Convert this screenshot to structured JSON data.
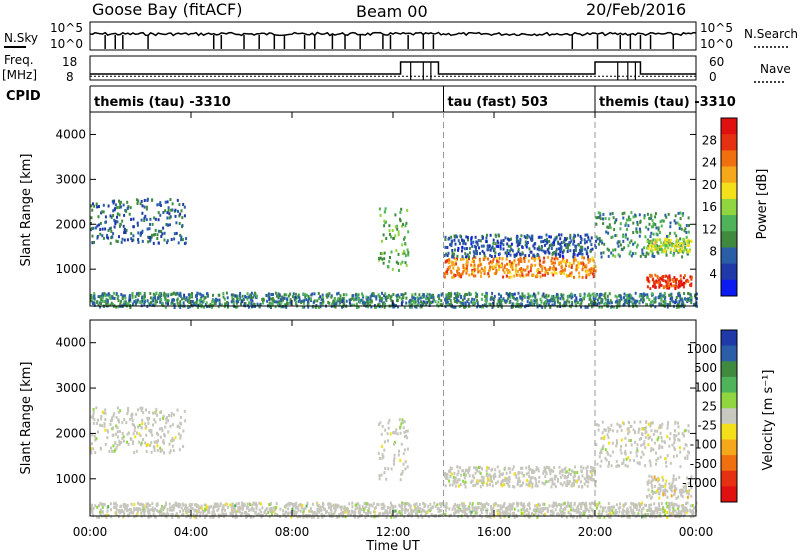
{
  "header": {
    "station": "Goose Bay (fitACF)",
    "beam": "Beam 00",
    "date": "20/Feb/2016"
  },
  "params": {
    "nsky_label": "N.Sky",
    "nsearch_label": "N.Search",
    "nsky_ticks": [
      "10^5",
      "10^0"
    ],
    "freq_label_1": "Freq.",
    "freq_label_2": "[MHz]",
    "freq_ticks": [
      "18",
      "8"
    ],
    "nave_label": "Nave",
    "nave_ticks": [
      "60",
      "0"
    ],
    "cpid_label": "CPID"
  },
  "cpid_segments": [
    {
      "label": "themis (tau) -3310",
      "start_h": 0,
      "end_h": 14
    },
    {
      "label": "tau (fast) 503",
      "start_h": 14,
      "end_h": 20
    },
    {
      "label": "themis (tau) -3310",
      "start_h": 20,
      "end_h": 24
    }
  ],
  "axes": {
    "xlabel": "Time UT",
    "xticks": [
      "00:00",
      "04:00",
      "08:00",
      "12:00",
      "16:00",
      "20:00",
      "00:00"
    ],
    "ylabel": "Slant Range [km]",
    "yticks": [
      "1000",
      "2000",
      "3000",
      "4000"
    ]
  },
  "colors": {
    "power": [
      "#0a1cf2",
      "#1f3aa8",
      "#2a5fa8",
      "#3f8a3f",
      "#4fb35a",
      "#8fd640",
      "#f3e01a",
      "#f5a81a",
      "#f07010",
      "#e63012",
      "#e01010"
    ],
    "velocity": [
      "#1f3aa8",
      "#2a5fa8",
      "#3f8a3f",
      "#4fb35a",
      "#8fd640",
      "#c8c8c0",
      "#f3e01a",
      "#f5a81a",
      "#f07010",
      "#e63012",
      "#e01010"
    ],
    "ground": "#c6c6bd"
  },
  "chart_data": [
    {
      "type": "heatmap",
      "title": "Power",
      "colorbar_label": "Power [dB]",
      "colorbar_ticks": [
        "4",
        "8",
        "12",
        "16",
        "20",
        "24",
        "28"
      ],
      "range": [
        0,
        30
      ],
      "xlim_h": [
        0,
        24
      ],
      "ylim_km": [
        180,
        4500
      ],
      "regions": [
        {
          "t": [
            0,
            3.8
          ],
          "r": [
            1600,
            2600
          ],
          "v": 7
        },
        {
          "t": [
            11.4,
            12.6
          ],
          "r": [
            1000,
            2400
          ],
          "v": 12
        },
        {
          "t": [
            14,
            20
          ],
          "r": [
            850,
            1300
          ],
          "v": 22
        },
        {
          "t": [
            14,
            20
          ],
          "r": [
            1300,
            1800
          ],
          "v": 6
        },
        {
          "t": [
            20,
            23.7
          ],
          "r": [
            1300,
            2300
          ],
          "v": 10
        },
        {
          "t": [
            22,
            23.8
          ],
          "r": [
            600,
            900
          ],
          "v": 26
        },
        {
          "t": [
            22,
            23.8
          ],
          "r": [
            1400,
            1700
          ],
          "v": 16
        },
        {
          "t": [
            0,
            24
          ],
          "r": [
            180,
            500
          ],
          "v": 9
        }
      ]
    },
    {
      "type": "heatmap",
      "title": "Velocity",
      "colorbar_label": "Velocity [m s⁻¹]",
      "colorbar_ticks": [
        "1000",
        "500",
        "100",
        "25",
        "-25",
        "-100",
        "-500",
        "-1000"
      ],
      "range": [
        -1200,
        1200
      ],
      "xlim_h": [
        0,
        24
      ],
      "ylim_km": [
        180,
        4500
      ],
      "regions": [
        {
          "t": [
            0,
            3.8
          ],
          "r": [
            1600,
            2600
          ],
          "v": 0
        },
        {
          "t": [
            11.4,
            12.6
          ],
          "r": [
            1000,
            2400
          ],
          "v": 0
        },
        {
          "t": [
            14,
            20
          ],
          "r": [
            850,
            1300
          ],
          "v": 0
        },
        {
          "t": [
            20,
            23.7
          ],
          "r": [
            1300,
            2300
          ],
          "v": 0
        },
        {
          "t": [
            22,
            23.8
          ],
          "r": [
            600,
            1100
          ],
          "v": -150
        },
        {
          "t": [
            0,
            24
          ],
          "r": [
            180,
            500
          ],
          "v": 50
        }
      ]
    }
  ]
}
